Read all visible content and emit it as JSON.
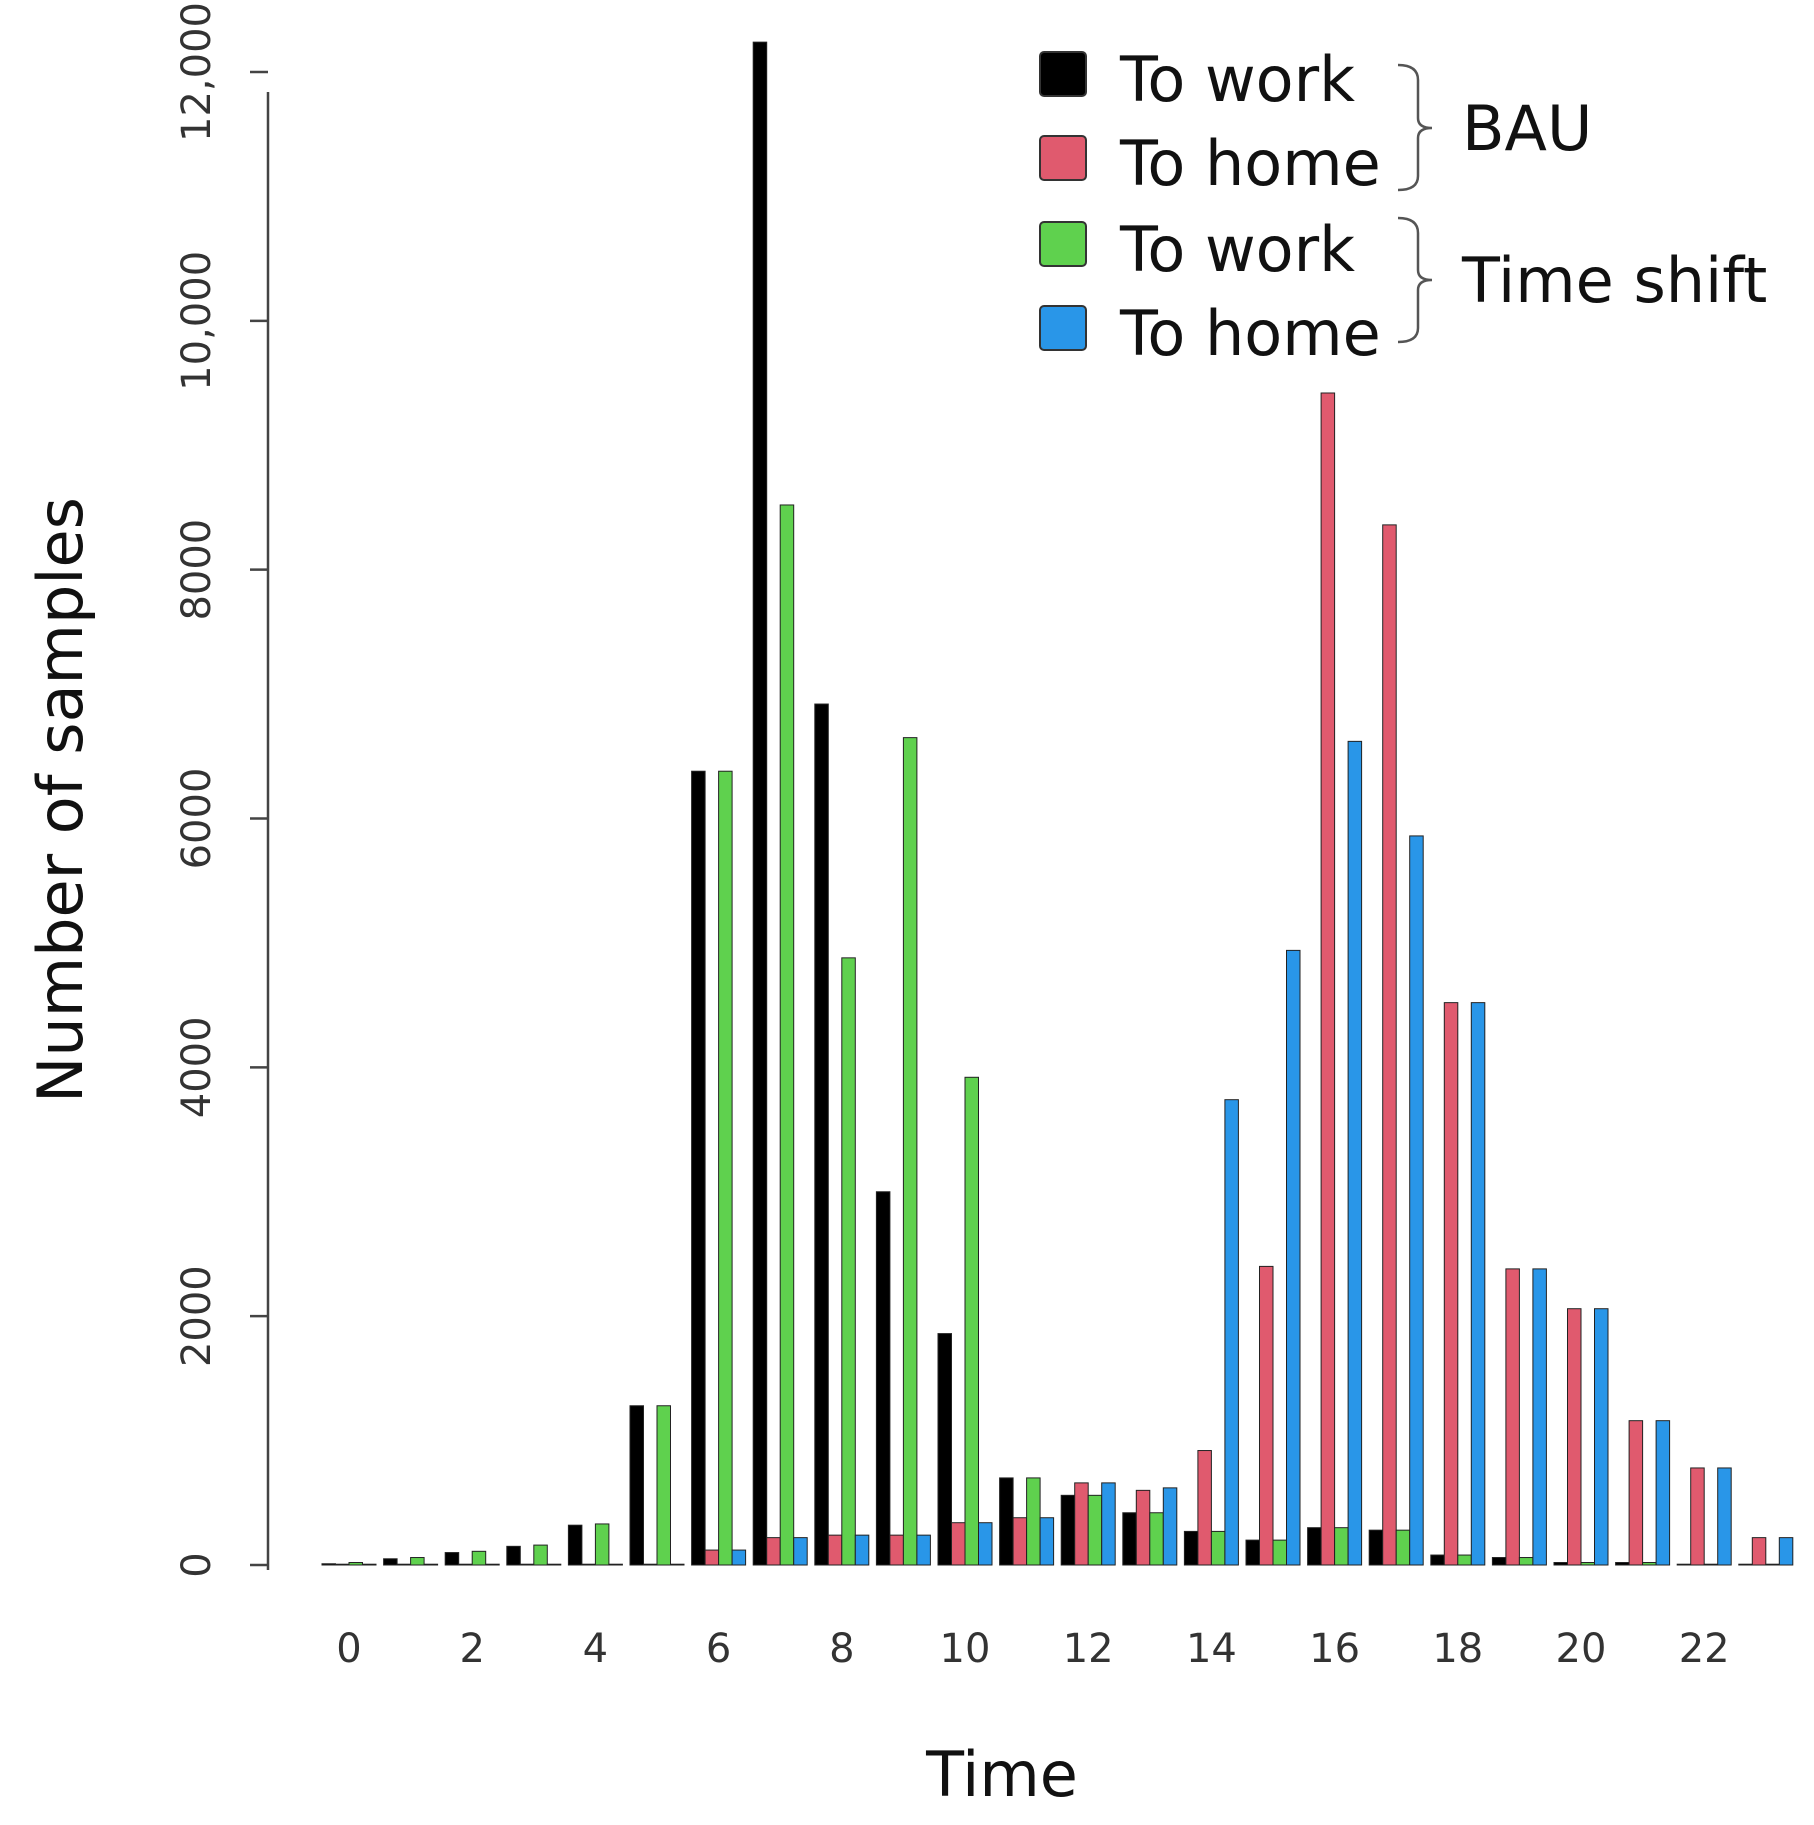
{
  "chart_data": {
    "type": "bar",
    "xlabel": "Time",
    "ylabel": "Number of samples",
    "ylim": [
      0,
      12000
    ],
    "y_ticks": [
      {
        "value": 0,
        "label": "0"
      },
      {
        "value": 2000,
        "label": "2000"
      },
      {
        "value": 4000,
        "label": "4000"
      },
      {
        "value": 6000,
        "label": "6000"
      },
      {
        "value": 8000,
        "label": "8000"
      },
      {
        "value": 10000,
        "label": "10,000"
      },
      {
        "value": 12000,
        "label": "12,000"
      }
    ],
    "x_tick_labels": [
      "0",
      "2",
      "4",
      "6",
      "8",
      "10",
      "12",
      "14",
      "16",
      "18",
      "20",
      "22"
    ],
    "x_tick_hours": [
      0,
      2,
      4,
      6,
      8,
      10,
      12,
      14,
      16,
      18,
      20,
      22
    ],
    "categories": [
      0,
      1,
      2,
      3,
      4,
      5,
      6,
      7,
      8,
      9,
      10,
      11,
      12,
      13,
      14,
      15,
      16,
      17,
      18,
      19,
      20,
      21,
      22,
      23
    ],
    "series": [
      {
        "name": "To work",
        "group": "BAU",
        "color": "#000000",
        "values": [
          10,
          50,
          100,
          150,
          320,
          1280,
          6380,
          12240,
          6920,
          3000,
          1860,
          700,
          560,
          420,
          270,
          200,
          300,
          280,
          80,
          60,
          20,
          20,
          0,
          0
        ]
      },
      {
        "name": "To home",
        "group": "BAU",
        "color": "#e05a6e",
        "values": [
          0,
          0,
          0,
          0,
          0,
          0,
          120,
          220,
          240,
          240,
          340,
          380,
          660,
          600,
          920,
          2400,
          9420,
          8360,
          4520,
          2380,
          2060,
          1160,
          780,
          220
        ]
      },
      {
        "name": "To work",
        "group": "Time shift",
        "color": "#5fd14e",
        "values": [
          20,
          60,
          110,
          160,
          330,
          1280,
          6380,
          8520,
          4880,
          6650,
          3920,
          700,
          560,
          420,
          270,
          200,
          300,
          280,
          80,
          60,
          20,
          20,
          0,
          0
        ]
      },
      {
        "name": "To home",
        "group": "Time shift",
        "color": "#2996e8",
        "values": [
          0,
          0,
          0,
          0,
          0,
          0,
          120,
          220,
          240,
          240,
          340,
          380,
          660,
          620,
          3740,
          4940,
          6620,
          5860,
          4520,
          2380,
          2060,
          1160,
          780,
          220
        ]
      }
    ],
    "legend": {
      "position": "top-right",
      "groups": [
        {
          "label": "BAU",
          "entries": [
            "To work",
            "To home"
          ]
        },
        {
          "label": "Time shift",
          "entries": [
            "To work",
            "To home"
          ]
        }
      ]
    }
  }
}
